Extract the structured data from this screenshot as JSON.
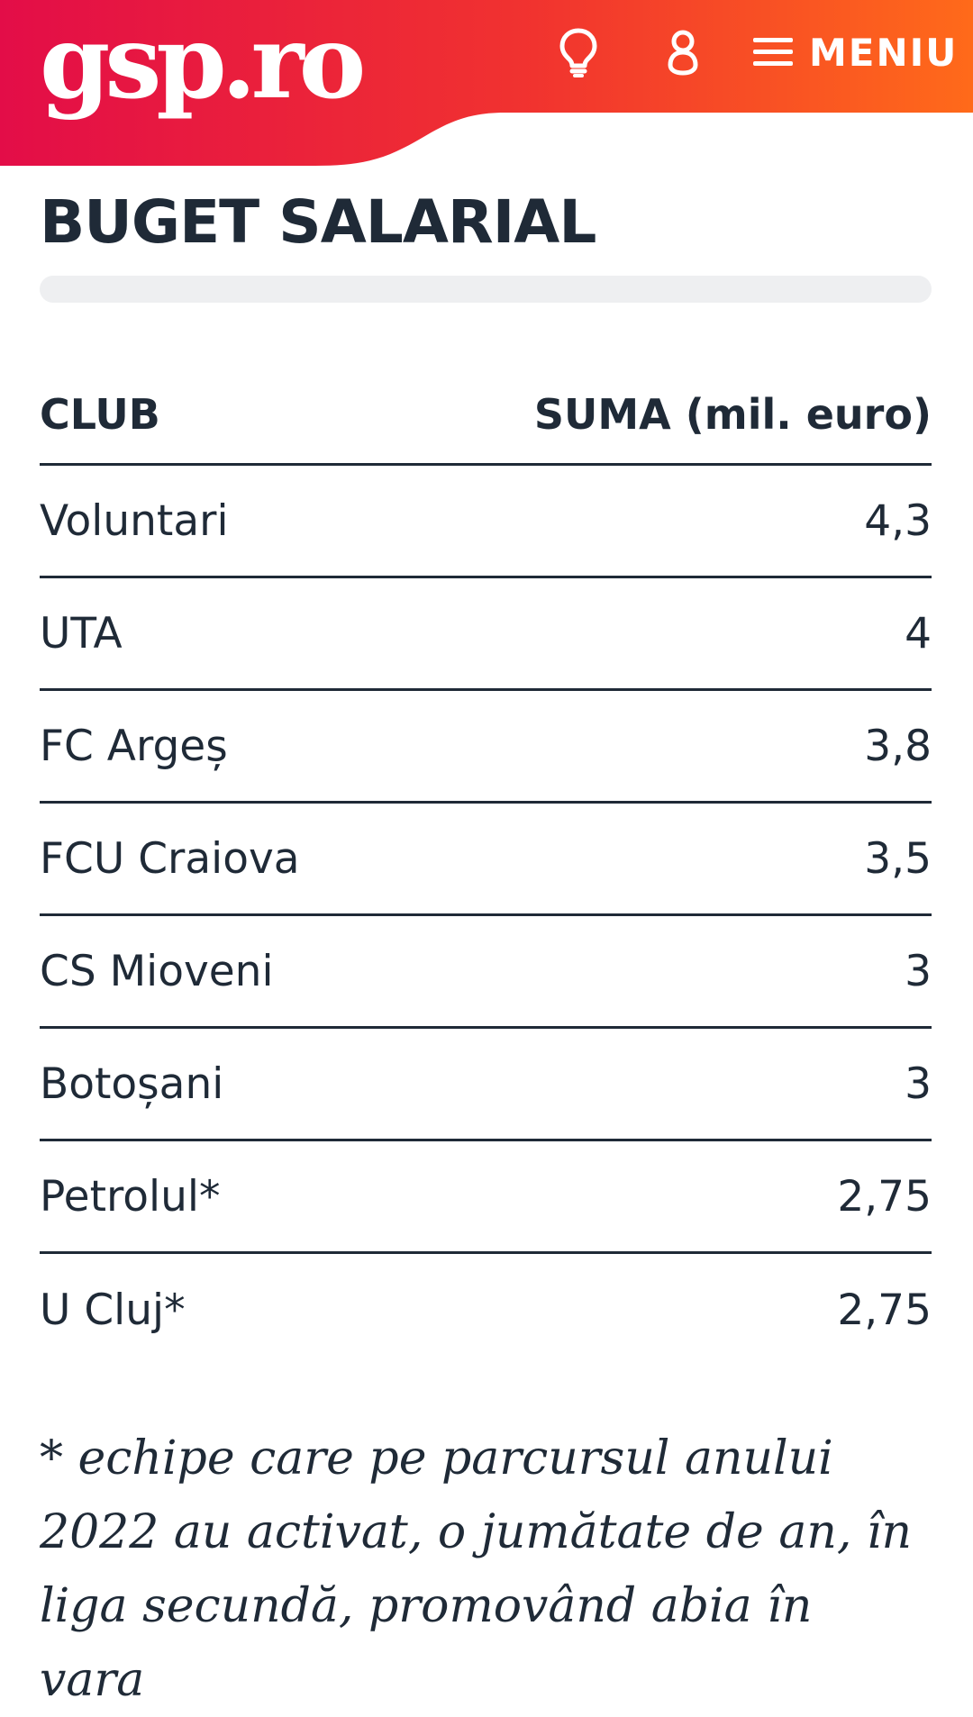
{
  "header": {
    "logo_text": "gsp.ro",
    "menu_label": "MENIU",
    "colors": {
      "gradient_start": "#e30d48",
      "gradient_end": "#ff6a1a"
    },
    "icons": [
      "lightbulb-icon",
      "user-icon",
      "hamburger-icon"
    ]
  },
  "page": {
    "title": "BUGET SALARIAL"
  },
  "table": {
    "headers": [
      "CLUB",
      "SUMA (mil. euro)"
    ],
    "rows": [
      {
        "club": "Voluntari",
        "suma": "4,3"
      },
      {
        "club": "UTA",
        "suma": "4"
      },
      {
        "club": "FC Argeș",
        "suma": "3,8"
      },
      {
        "club": "FCU Craiova",
        "suma": "3,5"
      },
      {
        "club": "CS Mioveni",
        "suma": "3"
      },
      {
        "club": "Botoșani",
        "suma": "3"
      },
      {
        "club": "Petrolul*",
        "suma": "2,75"
      },
      {
        "club": "U Cluj*",
        "suma": "2,75"
      }
    ]
  },
  "note": "* echipe care pe parcursul anului 2022 au activat, o jumătate de an, în liga secundă, promovând abia în vara"
}
